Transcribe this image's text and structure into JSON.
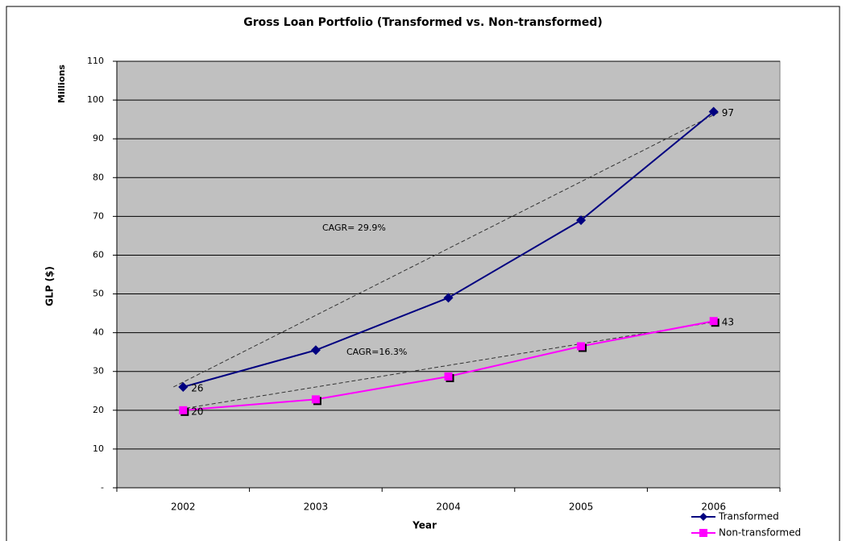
{
  "chart_data": {
    "type": "line",
    "title": "Gross Loan Portfolio (Transformed vs. Non-transformed)",
    "x_label": "Year",
    "y_label": "GLP ($)",
    "y_units_label": "Millions",
    "categories": [
      "2002",
      "2003",
      "2004",
      "2005",
      "2006"
    ],
    "series": [
      {
        "name": "Transformed",
        "color": "#000080",
        "marker": "diamond",
        "values": [
          26,
          35.5,
          49,
          69,
          97
        ],
        "value_labels": [
          "26",
          null,
          null,
          null,
          "97"
        ]
      },
      {
        "name": "Non-transformed",
        "color": "#ff00ff",
        "marker": "square",
        "values": [
          20,
          22.8,
          28.7,
          36.5,
          43
        ],
        "value_labels": [
          "20",
          null,
          null,
          null,
          "43"
        ]
      }
    ],
    "annotations": [
      "CAGR= 29.9%",
      "CAGR=16.3%"
    ],
    "ylim": [
      0,
      110
    ],
    "yticks": [
      {
        "value": 0,
        "label": "-"
      },
      10,
      20,
      30,
      40,
      50,
      60,
      70,
      80,
      90,
      100,
      110
    ],
    "grid": true,
    "legend": "bottom-right",
    "plot_background": "#c0c0c0"
  }
}
